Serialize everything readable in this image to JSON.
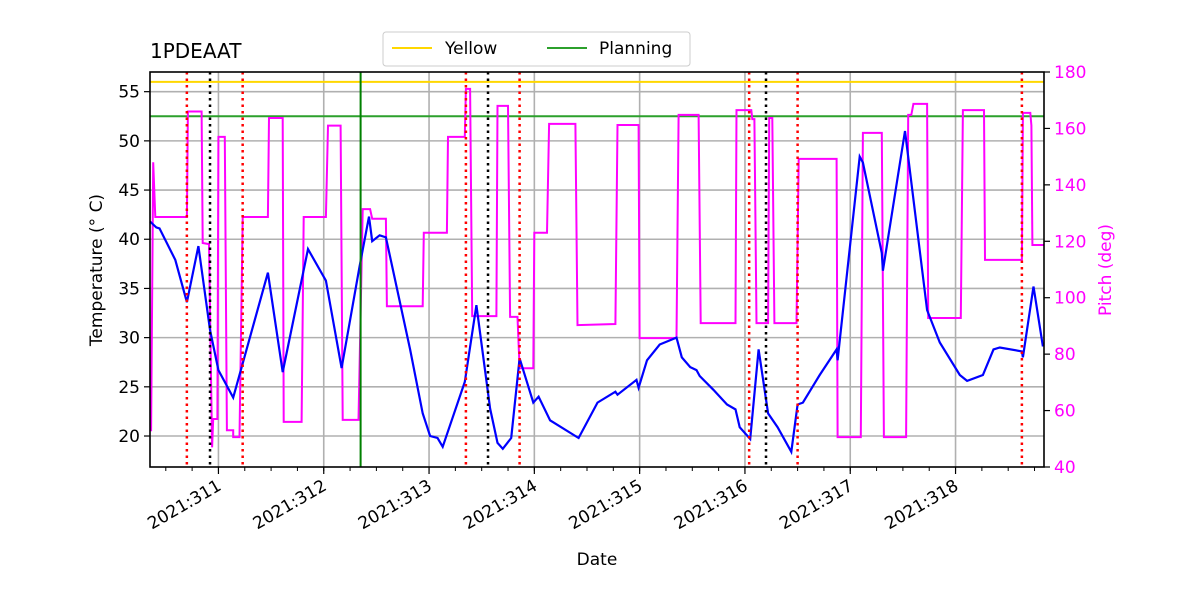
{
  "chart_data": {
    "type": "line",
    "title": "1PDEAAT",
    "xlabel": "Date",
    "ylabel": "Temperature ($^\\circ$C)",
    "ylabel_display": "Temperature (° C)",
    "y2label": "Pitch (deg)",
    "xlim": [
      310.35,
      318.84
    ],
    "ylim": [
      16.85,
      57.0
    ],
    "y2lim": [
      40,
      180
    ],
    "x_ticks": [
      311,
      312,
      313,
      314,
      315,
      316,
      317,
      318
    ],
    "x_tick_labels": [
      "2021:311",
      "2021:312",
      "2021:313",
      "2021:314",
      "2021:315",
      "2021:316",
      "2021:317",
      "2021:318"
    ],
    "y_ticks": [
      20,
      25,
      30,
      35,
      40,
      45,
      50,
      55
    ],
    "y2_ticks": [
      40,
      60,
      80,
      100,
      120,
      140,
      160,
      180
    ],
    "grid": true,
    "legend": {
      "placement": "top-center",
      "entries": [
        {
          "label": "Yellow",
          "color": "#ffd700"
        },
        {
          "label": "Planning",
          "color": "#2ca02c"
        }
      ]
    },
    "colors": {
      "temperature": "#0000ff",
      "pitch": "#ff00ff",
      "yellow": "#ffd700",
      "planning": "#2ca02c",
      "planning_vline": "#008000",
      "red_marker": "#ff0000",
      "black_marker": "#000000",
      "pitch_axis": "#ff00ff"
    },
    "hlines": {
      "yellow": 56.0,
      "planning": 52.5
    },
    "planning_vline": 312.35,
    "red_dotted_vlines": [
      310.7,
      311.23,
      313.35,
      313.86,
      316.04,
      316.5,
      318.63
    ],
    "black_dotted_vlines": [
      310.92,
      313.56,
      316.2
    ],
    "series": [
      {
        "axis": "left",
        "color": "#0000ff",
        "points": [
          [
            310.35,
            41.8
          ],
          [
            310.41,
            41.2
          ],
          [
            310.44,
            41.1
          ],
          [
            310.59,
            37.9
          ],
          [
            310.7,
            33.6
          ],
          [
            310.81,
            39.3
          ],
          [
            310.92,
            30.8
          ],
          [
            311.0,
            26.7
          ],
          [
            311.14,
            23.9
          ],
          [
            311.47,
            36.6
          ],
          [
            311.61,
            26.5
          ],
          [
            311.85,
            39.0
          ],
          [
            312.02,
            35.8
          ],
          [
            312.17,
            26.9
          ],
          [
            312.34,
            37.2
          ],
          [
            312.43,
            42.3
          ],
          [
            312.46,
            39.8
          ],
          [
            312.53,
            40.4
          ],
          [
            312.59,
            40.2
          ],
          [
            312.82,
            28.8
          ],
          [
            312.94,
            22.3
          ],
          [
            313.01,
            20.0
          ],
          [
            313.08,
            19.8
          ],
          [
            313.13,
            18.9
          ],
          [
            313.34,
            25.5
          ],
          [
            313.45,
            33.3
          ],
          [
            313.58,
            22.8
          ],
          [
            313.65,
            19.3
          ],
          [
            313.7,
            18.7
          ],
          [
            313.78,
            19.8
          ],
          [
            313.86,
            27.9
          ],
          [
            313.99,
            23.4
          ],
          [
            314.04,
            24.0
          ],
          [
            314.15,
            21.6
          ],
          [
            314.42,
            19.8
          ],
          [
            314.6,
            23.4
          ],
          [
            314.77,
            24.5
          ],
          [
            314.79,
            24.2
          ],
          [
            314.97,
            25.7
          ],
          [
            314.99,
            24.9
          ],
          [
            315.07,
            27.7
          ],
          [
            315.19,
            29.3
          ],
          [
            315.35,
            30.0
          ],
          [
            315.4,
            28.0
          ],
          [
            315.48,
            27.0
          ],
          [
            315.54,
            26.7
          ],
          [
            315.57,
            26.1
          ],
          [
            315.7,
            24.7
          ],
          [
            315.83,
            23.2
          ],
          [
            315.91,
            22.7
          ],
          [
            315.95,
            20.9
          ],
          [
            316.05,
            19.7
          ],
          [
            316.13,
            28.8
          ],
          [
            316.22,
            22.3
          ],
          [
            316.31,
            20.9
          ],
          [
            316.44,
            18.4
          ],
          [
            316.5,
            23.2
          ],
          [
            316.55,
            23.4
          ],
          [
            316.71,
            26.2
          ],
          [
            316.87,
            28.8
          ],
          [
            316.88,
            27.7
          ],
          [
            317.09,
            48.4
          ],
          [
            317.12,
            47.8
          ],
          [
            317.3,
            38.6
          ],
          [
            317.31,
            36.8
          ],
          [
            317.52,
            51.0
          ],
          [
            317.73,
            32.8
          ],
          [
            317.85,
            29.5
          ],
          [
            318.04,
            26.2
          ],
          [
            318.11,
            25.6
          ],
          [
            318.26,
            26.2
          ],
          [
            318.36,
            28.8
          ],
          [
            318.42,
            29.0
          ],
          [
            318.63,
            28.6
          ],
          [
            318.64,
            28.0
          ],
          [
            318.74,
            35.2
          ],
          [
            318.83,
            29.1
          ]
        ]
      },
      {
        "axis": "right",
        "color": "#ff00ff",
        "points": [
          [
            310.35,
            53
          ],
          [
            310.36,
            53
          ],
          [
            310.38,
            148
          ],
          [
            310.4,
            128.6
          ],
          [
            310.7,
            128.6
          ],
          [
            310.71,
            166
          ],
          [
            310.84,
            166
          ],
          [
            310.85,
            119.4
          ],
          [
            310.91,
            119
          ],
          [
            310.94,
            47
          ],
          [
            310.95,
            57
          ],
          [
            310.99,
            57
          ],
          [
            311.0,
            157
          ],
          [
            311.06,
            157
          ],
          [
            311.08,
            53
          ],
          [
            311.14,
            53
          ],
          [
            311.14,
            50.6
          ],
          [
            311.2,
            50.6
          ],
          [
            311.23,
            128.6
          ],
          [
            311.47,
            128.6
          ],
          [
            311.48,
            163.7
          ],
          [
            311.61,
            163.7
          ],
          [
            311.62,
            56
          ],
          [
            311.79,
            56
          ],
          [
            311.81,
            128.6
          ],
          [
            312.02,
            128.6
          ],
          [
            312.04,
            161
          ],
          [
            312.16,
            161
          ],
          [
            312.18,
            56.7
          ],
          [
            312.33,
            56.7
          ],
          [
            312.37,
            131.4
          ],
          [
            312.44,
            131.4
          ],
          [
            312.46,
            128
          ],
          [
            312.59,
            128
          ],
          [
            312.6,
            97
          ],
          [
            312.94,
            97
          ],
          [
            312.95,
            123
          ],
          [
            313.17,
            123
          ],
          [
            313.18,
            157
          ],
          [
            313.34,
            157
          ],
          [
            313.35,
            174
          ],
          [
            313.39,
            174
          ],
          [
            313.41,
            93.5
          ],
          [
            313.64,
            93.5
          ],
          [
            313.65,
            168
          ],
          [
            313.75,
            168
          ],
          [
            313.77,
            93.2
          ],
          [
            313.84,
            93.2
          ],
          [
            313.86,
            75
          ],
          [
            313.99,
            75
          ],
          [
            314.0,
            123
          ],
          [
            314.12,
            123
          ],
          [
            314.14,
            161.6
          ],
          [
            314.39,
            161.6
          ],
          [
            314.41,
            90.3
          ],
          [
            314.77,
            90.7
          ],
          [
            314.79,
            161.2
          ],
          [
            314.99,
            161.2
          ],
          [
            315.0,
            85.7
          ],
          [
            315.35,
            85.7
          ],
          [
            315.37,
            164.8
          ],
          [
            315.56,
            164.8
          ],
          [
            315.58,
            91
          ],
          [
            315.91,
            91
          ],
          [
            315.92,
            166.5
          ],
          [
            316.06,
            166.5
          ],
          [
            316.07,
            163.3
          ],
          [
            316.09,
            163.3
          ],
          [
            316.11,
            91
          ],
          [
            316.22,
            91
          ],
          [
            316.23,
            163.7
          ],
          [
            316.26,
            163.7
          ],
          [
            316.28,
            91
          ],
          [
            316.49,
            91
          ],
          [
            316.51,
            149.2
          ],
          [
            316.87,
            149.2
          ],
          [
            316.88,
            50.6
          ],
          [
            317.1,
            50.6
          ],
          [
            317.12,
            158.4
          ],
          [
            317.3,
            158.4
          ],
          [
            317.32,
            50.6
          ],
          [
            317.53,
            50.6
          ],
          [
            317.55,
            164.8
          ],
          [
            317.58,
            164.8
          ],
          [
            317.6,
            168.7
          ],
          [
            317.73,
            168.7
          ],
          [
            317.74,
            92.8
          ],
          [
            318.05,
            92.8
          ],
          [
            318.07,
            166.5
          ],
          [
            318.27,
            166.5
          ],
          [
            318.28,
            113.4
          ],
          [
            318.63,
            113.4
          ],
          [
            318.64,
            165.5
          ],
          [
            318.71,
            165.5
          ],
          [
            318.72,
            161
          ],
          [
            318.73,
            118.7
          ],
          [
            318.84,
            118.7
          ]
        ]
      }
    ]
  }
}
